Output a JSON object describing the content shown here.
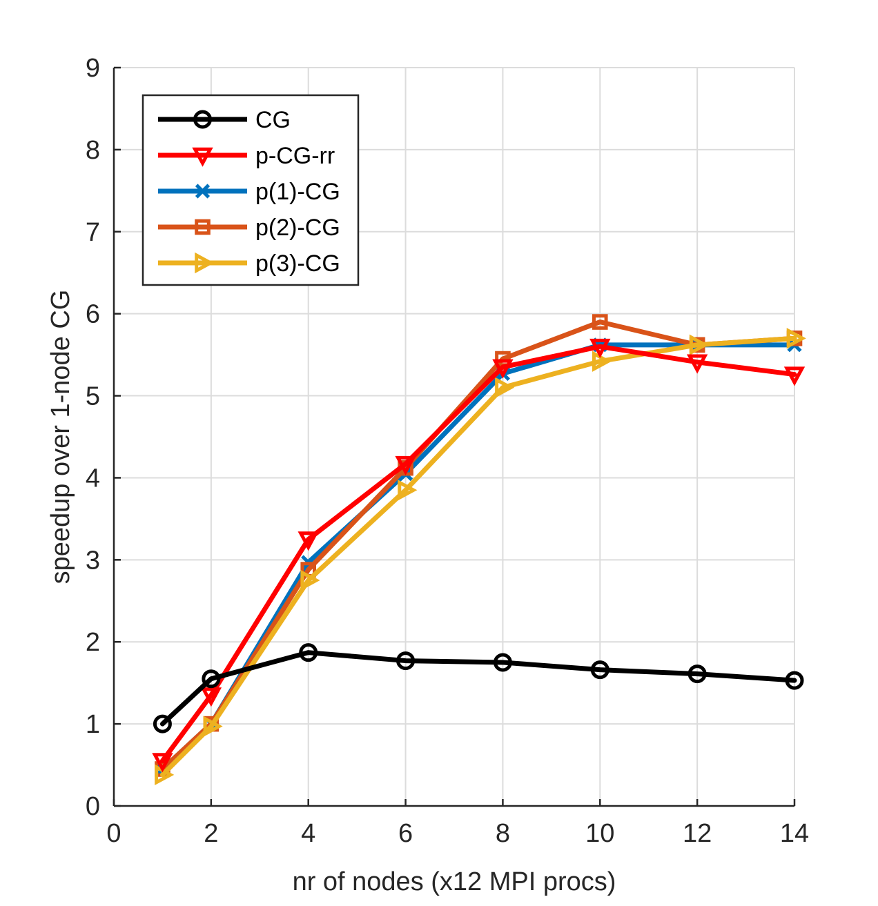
{
  "chart_data": {
    "type": "line",
    "title": "",
    "xlabel": "nr of nodes (x12 MPI procs)",
    "ylabel": "speedup over 1-node CG",
    "xlim": [
      0,
      14
    ],
    "ylim": [
      0,
      9
    ],
    "xticks": [
      0,
      2,
      4,
      6,
      8,
      10,
      12,
      14
    ],
    "yticks": [
      0,
      1,
      2,
      3,
      4,
      5,
      6,
      7,
      8,
      9
    ],
    "grid": true,
    "legend_position": "top-left",
    "x": [
      1,
      2,
      4,
      6,
      8,
      10,
      12,
      14
    ],
    "series": [
      {
        "name": "CG",
        "color": "#000000",
        "marker": "circle",
        "values": [
          1.0,
          1.55,
          1.87,
          1.77,
          1.75,
          1.66,
          1.61,
          1.53
        ]
      },
      {
        "name": "p-CG-rr",
        "color": "#ff0000",
        "marker": "triangle-down",
        "values": [
          0.55,
          1.35,
          3.25,
          4.17,
          5.35,
          5.6,
          5.41,
          5.26
        ]
      },
      {
        "name": "p(1)-CG",
        "color": "#0072bd",
        "marker": "x",
        "values": [
          0.45,
          1.0,
          2.97,
          4.05,
          5.27,
          5.62,
          5.62,
          5.62
        ]
      },
      {
        "name": "p(2)-CG",
        "color": "#d95319",
        "marker": "square",
        "values": [
          0.45,
          1.0,
          2.88,
          4.12,
          5.45,
          5.9,
          5.62,
          5.7
        ]
      },
      {
        "name": "p(3)-CG",
        "color": "#edb120",
        "marker": "triangle-right",
        "values": [
          0.38,
          0.97,
          2.75,
          3.85,
          5.1,
          5.42,
          5.62,
          5.7
        ]
      }
    ]
  }
}
